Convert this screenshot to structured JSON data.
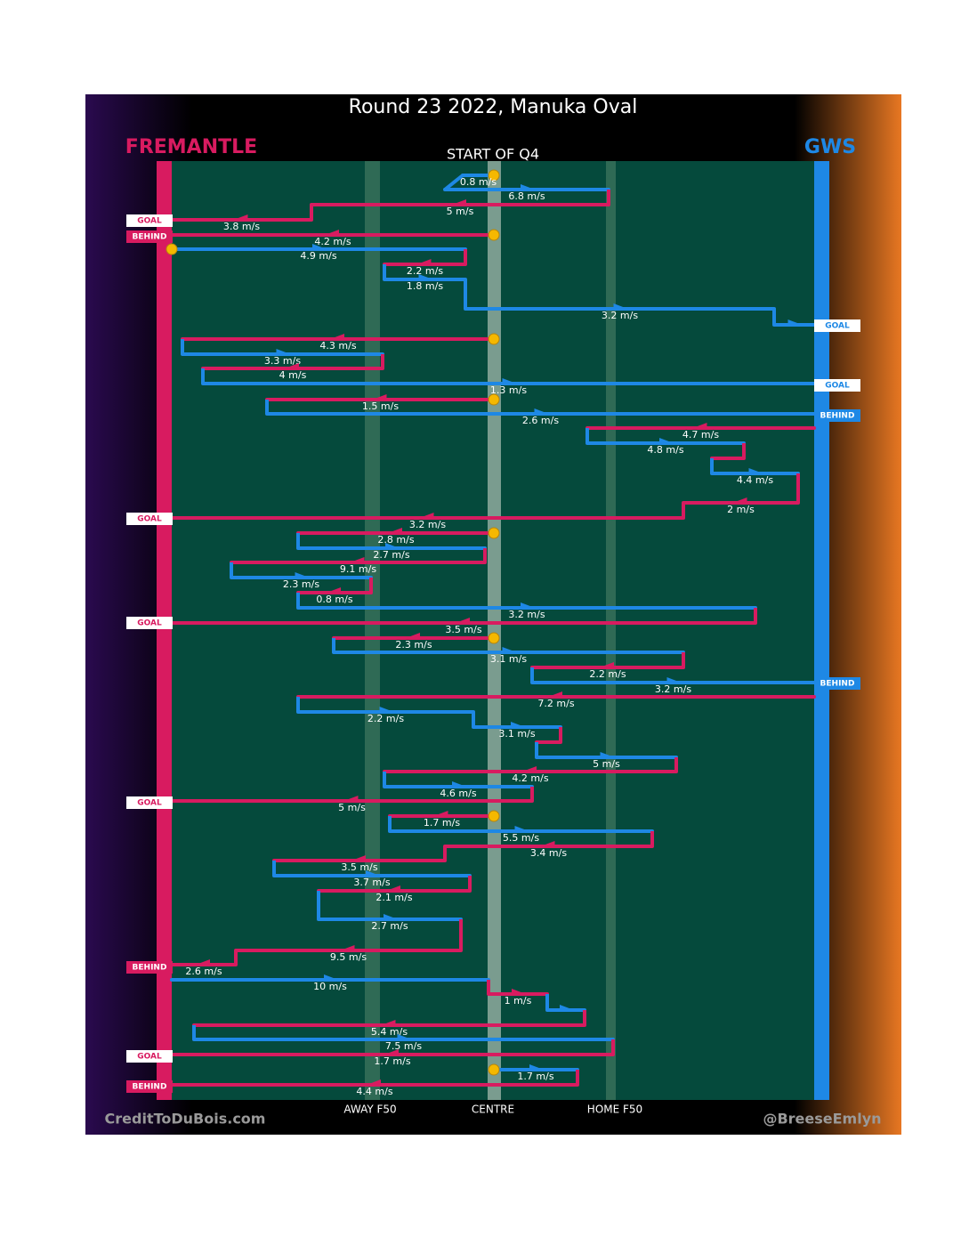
{
  "title": "Round 23 2022, Manuka Oval",
  "subtitle": "START OF Q4",
  "teams": {
    "away": "FREMANTLE",
    "home": "GWS"
  },
  "axis_labels": [
    "AWAY F50",
    "CENTRE",
    "HOME F50"
  ],
  "footer": {
    "left": "CreditToDuBois.com",
    "right": "@BreeseEmlyn"
  },
  "speed_labels": [
    "0.8 m/s",
    "6.8 m/s",
    "5 m/s",
    "3.8 m/s",
    "4.2 m/s",
    "4.9 m/s",
    "2.2 m/s",
    "1.8 m/s",
    "3.2 m/s",
    "4.3 m/s",
    "3.3 m/s",
    "4 m/s",
    "1.3 m/s",
    "1.5 m/s",
    "2.6 m/s",
    "4.7 m/s",
    "4.8 m/s",
    "4.4 m/s",
    "2 m/s",
    "3.2 m/s",
    "2.8 m/s",
    "2.7 m/s",
    "9.1 m/s",
    "2.3 m/s",
    "0.8 m/s",
    "3.2 m/s",
    "3.5 m/s",
    "2.3 m/s",
    "3.1 m/s",
    "2.2 m/s",
    "3.2 m/s",
    "7.2 m/s",
    "2.2 m/s",
    "3.1 m/s",
    "5 m/s",
    "4.2 m/s",
    "4.6 m/s",
    "5 m/s",
    "1.7 m/s",
    "5.5 m/s",
    "3.4 m/s",
    "3.5 m/s",
    "3.7 m/s",
    "2.1 m/s",
    "2.7 m/s",
    "9.5 m/s",
    "2.6 m/s",
    "10 m/s",
    "1 m/s",
    "5.4 m/s",
    "7.5 m/s",
    "1.7 m/s",
    "1.7 m/s",
    "4.4 m/s"
  ],
  "outcomes": [
    "GOAL",
    "BEHIND",
    "GOAL",
    "GOAL",
    "BEHIND",
    "GOAL",
    "GOAL",
    "BEHIND",
    "GOAL",
    "BEHIND",
    "GOAL",
    "BEHIND"
  ]
}
